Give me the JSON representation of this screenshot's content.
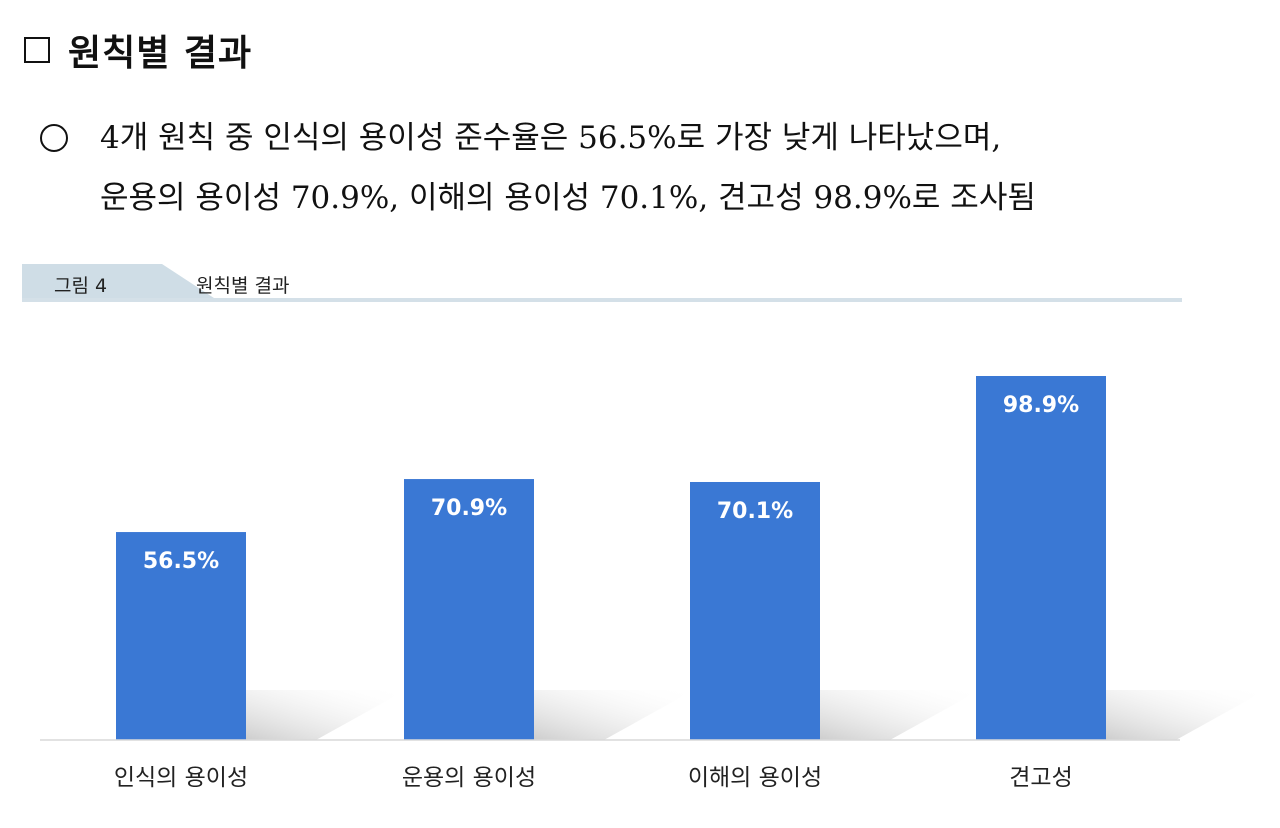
{
  "header": {
    "title": "원칙별 결과"
  },
  "summary": {
    "line1": "4개 원칙 중 인식의 용이성 준수율은 56.5%로 가장 낮게 나타났으며,",
    "line2": "운용의 용이성 70.9%, 이해의 용이성 70.1%, 견고성 98.9%로 조사됨"
  },
  "figure": {
    "label": "그림 4",
    "caption": "원칙별 결과"
  },
  "colors": {
    "bar": "#3a78d4",
    "tab": "#cfdde6"
  },
  "chart_data": {
    "type": "bar",
    "categories": [
      "인식의 용이성",
      "운용의 용이성",
      "이해의 용이성",
      "견고성"
    ],
    "values": [
      56.5,
      70.9,
      70.1,
      98.9
    ],
    "data_labels": [
      "56.5%",
      "70.9%",
      "70.1%",
      "98.9%"
    ],
    "ylim": [
      0,
      100
    ],
    "grid": false,
    "legend": "none"
  }
}
